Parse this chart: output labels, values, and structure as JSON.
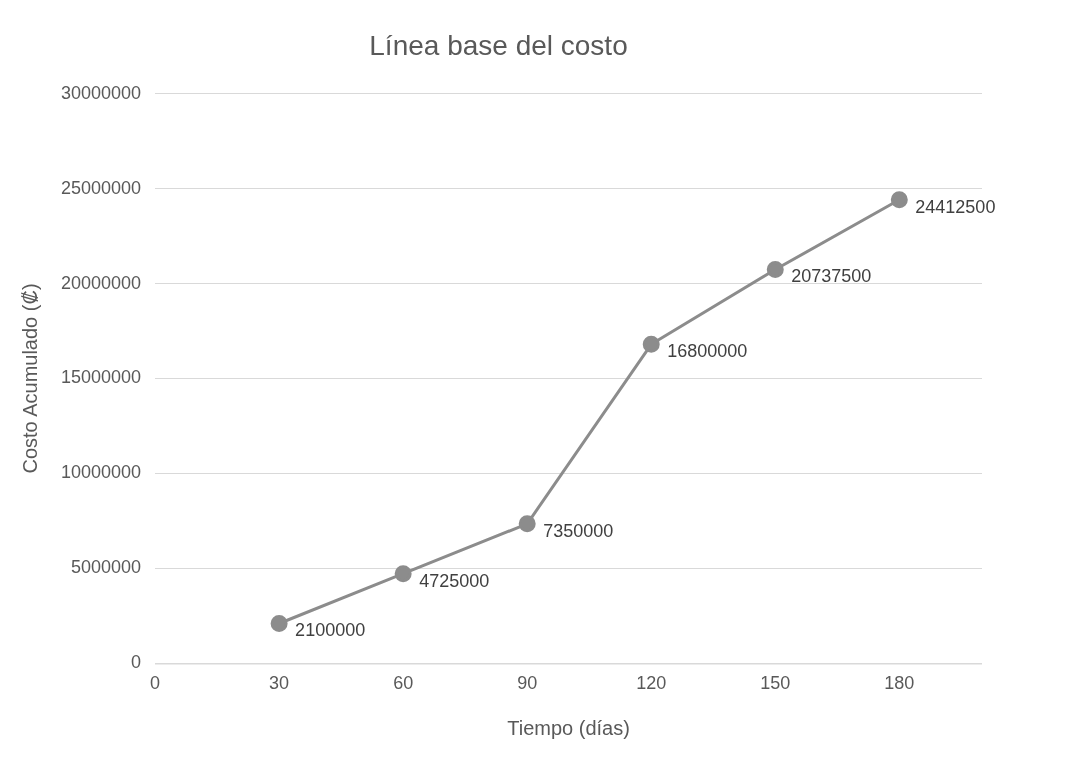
{
  "chart_data": {
    "type": "line",
    "title": "Línea base del costo",
    "xlabel": "Tiempo (días)",
    "ylabel": "Costo Acumulado (₡)",
    "x": [
      30,
      60,
      90,
      120,
      150,
      180
    ],
    "series": [
      {
        "color": "#8c8c8c",
        "values": [
          2100000,
          4725000,
          7350000,
          16800000,
          20737500,
          24412500
        ]
      }
    ],
    "xlim": [
      0,
      200
    ],
    "xticks": [
      0,
      30,
      60,
      90,
      120,
      150,
      180
    ],
    "ylim": [
      0,
      30000000
    ],
    "yticks": [
      0,
      5000000,
      10000000,
      15000000,
      20000000,
      25000000,
      30000000
    ],
    "grid": "y",
    "legend": false,
    "marker": "circle",
    "line_style": "solid",
    "data_labels": true
  }
}
